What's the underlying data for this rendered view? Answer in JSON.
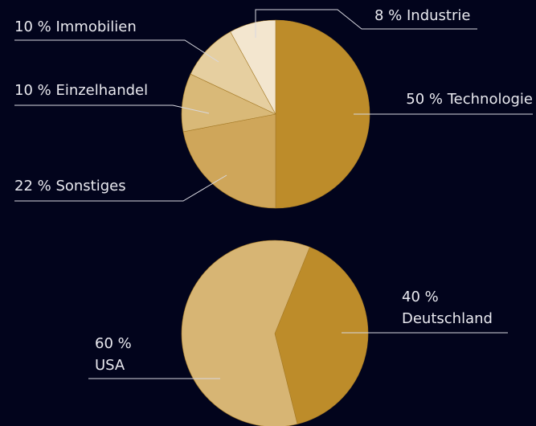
{
  "chart_data": [
    {
      "type": "pie",
      "categories": [
        "Technologie",
        "Sonstiges",
        "Einzelhandel",
        "Immobilien",
        "Industrie"
      ],
      "values": [
        50,
        22,
        10,
        10,
        8
      ],
      "value_labels": [
        "50 %",
        "22 %",
        "10 %",
        "10 %",
        "8 %"
      ],
      "colors": [
        "#bd8c2a",
        "#cfa65a",
        "#d9b978",
        "#e6cfa0",
        "#f3e6cf"
      ]
    },
    {
      "type": "pie",
      "categories": [
        "Deutschland",
        "USA"
      ],
      "values": [
        40,
        60
      ],
      "value_labels": [
        "40 %",
        "60 %"
      ],
      "colors": [
        "#bd8c2a",
        "#d7b574"
      ]
    }
  ]
}
